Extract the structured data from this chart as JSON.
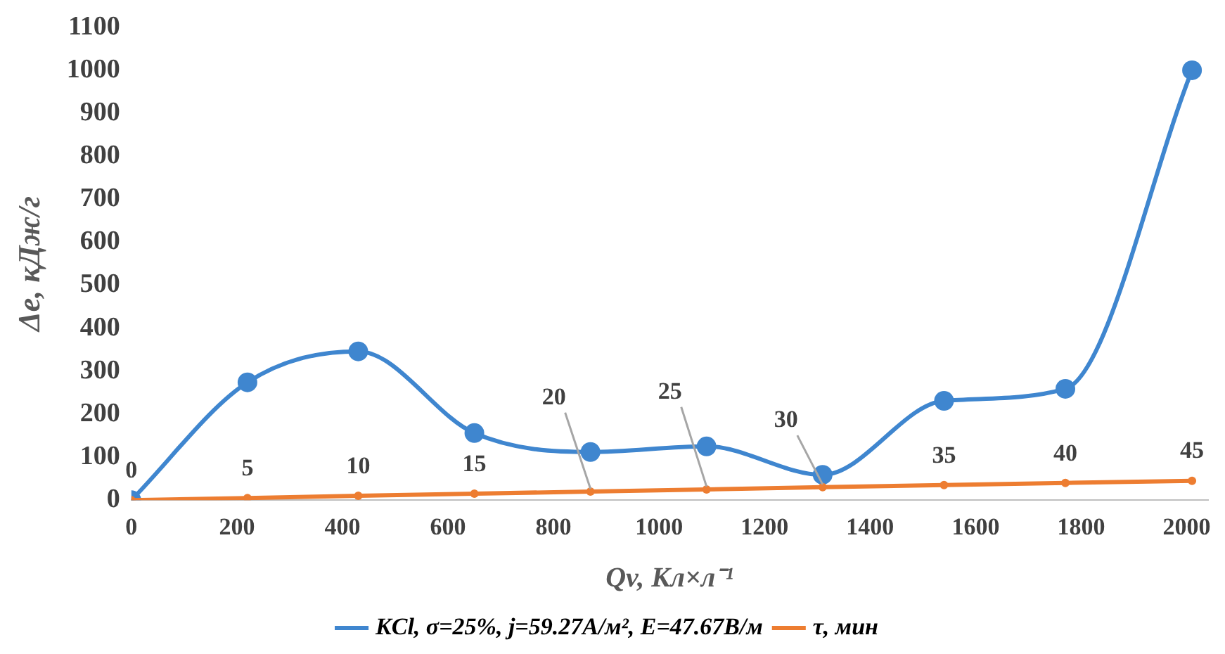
{
  "chart_data": {
    "type": "line",
    "xlabel": "Qv, Кл×л⁻¹",
    "ylabel": "Δe, кДж/г",
    "x": [
      0,
      220,
      430,
      650,
      870,
      1090,
      1310,
      1540,
      1770,
      2010
    ],
    "series": [
      {
        "name": "KCl, σ=25%, j=59.27А/м², E=47.67В/м",
        "color": "#3f86cf",
        "values": [
          0,
          274,
          346,
          156,
          112,
          125,
          59,
          231,
          259,
          1000
        ]
      },
      {
        "name": "τ, мин",
        "color": "#ed7d31",
        "values": [
          0,
          5,
          10,
          15,
          20,
          25,
          30,
          35,
          40,
          45
        ],
        "value_labels": [
          "0",
          "5",
          "10",
          "15",
          "20",
          "25",
          "30",
          "35",
          "40",
          "45"
        ]
      }
    ],
    "xlim": [
      0,
      2040
    ],
    "xticks": [
      0,
      200,
      400,
      600,
      800,
      1000,
      1200,
      1400,
      1600,
      1800,
      2000
    ],
    "ylim": [
      0,
      1100
    ],
    "yticks": [
      0,
      100,
      200,
      300,
      400,
      500,
      600,
      700,
      800,
      900,
      1000,
      1100
    ],
    "grid": false,
    "legend": "bottom",
    "marker": "circle",
    "line_style": "solid"
  }
}
